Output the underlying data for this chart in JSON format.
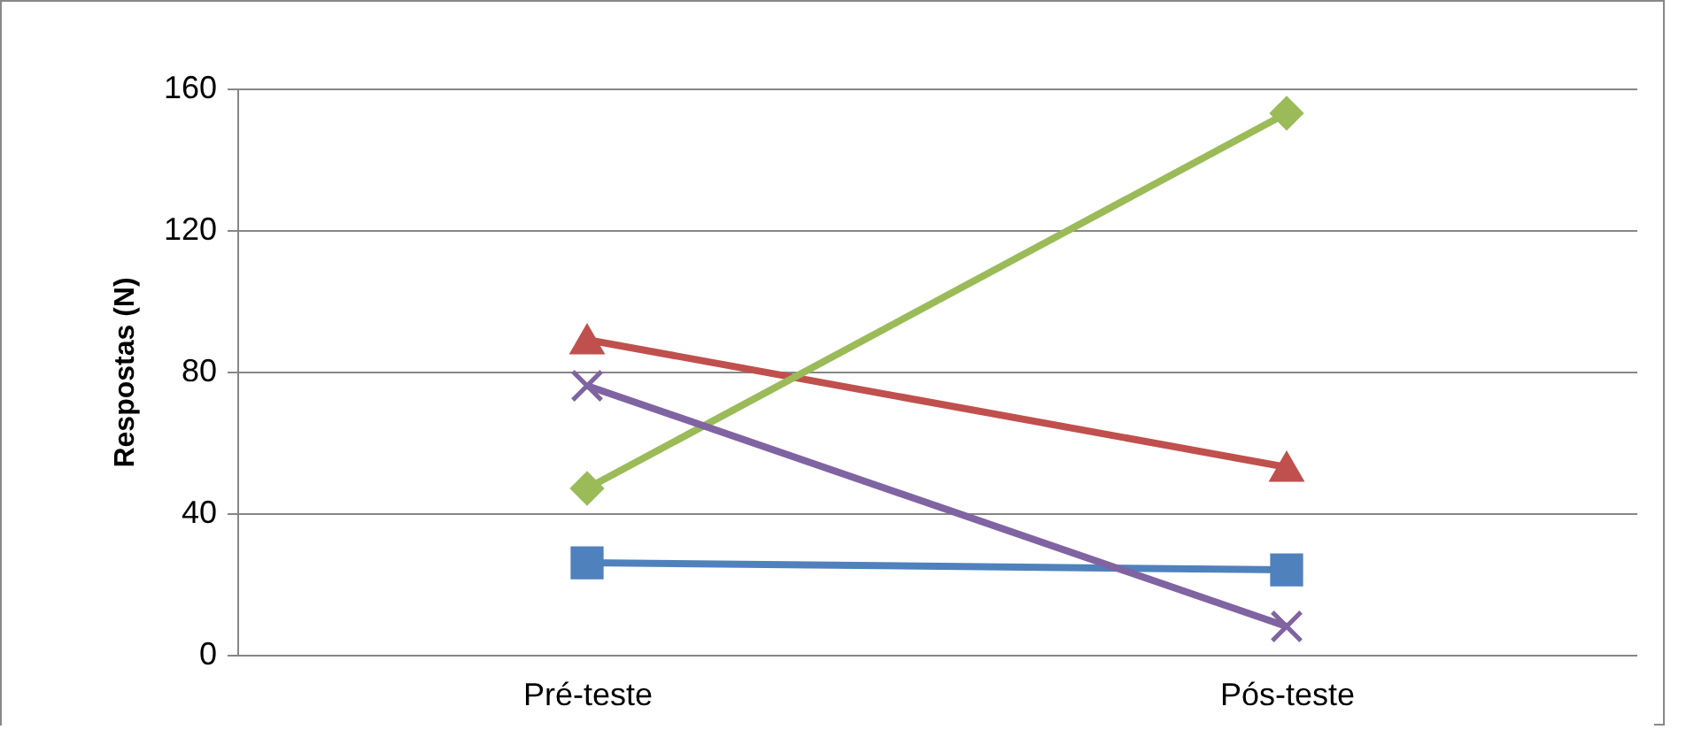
{
  "chart_data": {
    "type": "line",
    "ylabel": "Respostas (N)",
    "categories": [
      "Pré-teste",
      "Pós-teste"
    ],
    "series": [
      {
        "color": "#4f81bd",
        "marker": "square",
        "values": [
          26,
          24
        ]
      },
      {
        "color": "#c0504d",
        "marker": "triangle",
        "values": [
          89,
          53
        ]
      },
      {
        "color": "#9bbb59",
        "marker": "diamond",
        "values": [
          47,
          153
        ]
      },
      {
        "color": "#8064a2",
        "marker": "cross",
        "values": [
          76,
          8
        ]
      }
    ],
    "ylim": [
      0,
      160
    ],
    "yticks": [
      0,
      40,
      80,
      120,
      160
    ],
    "grid": "y",
    "legend": false
  }
}
